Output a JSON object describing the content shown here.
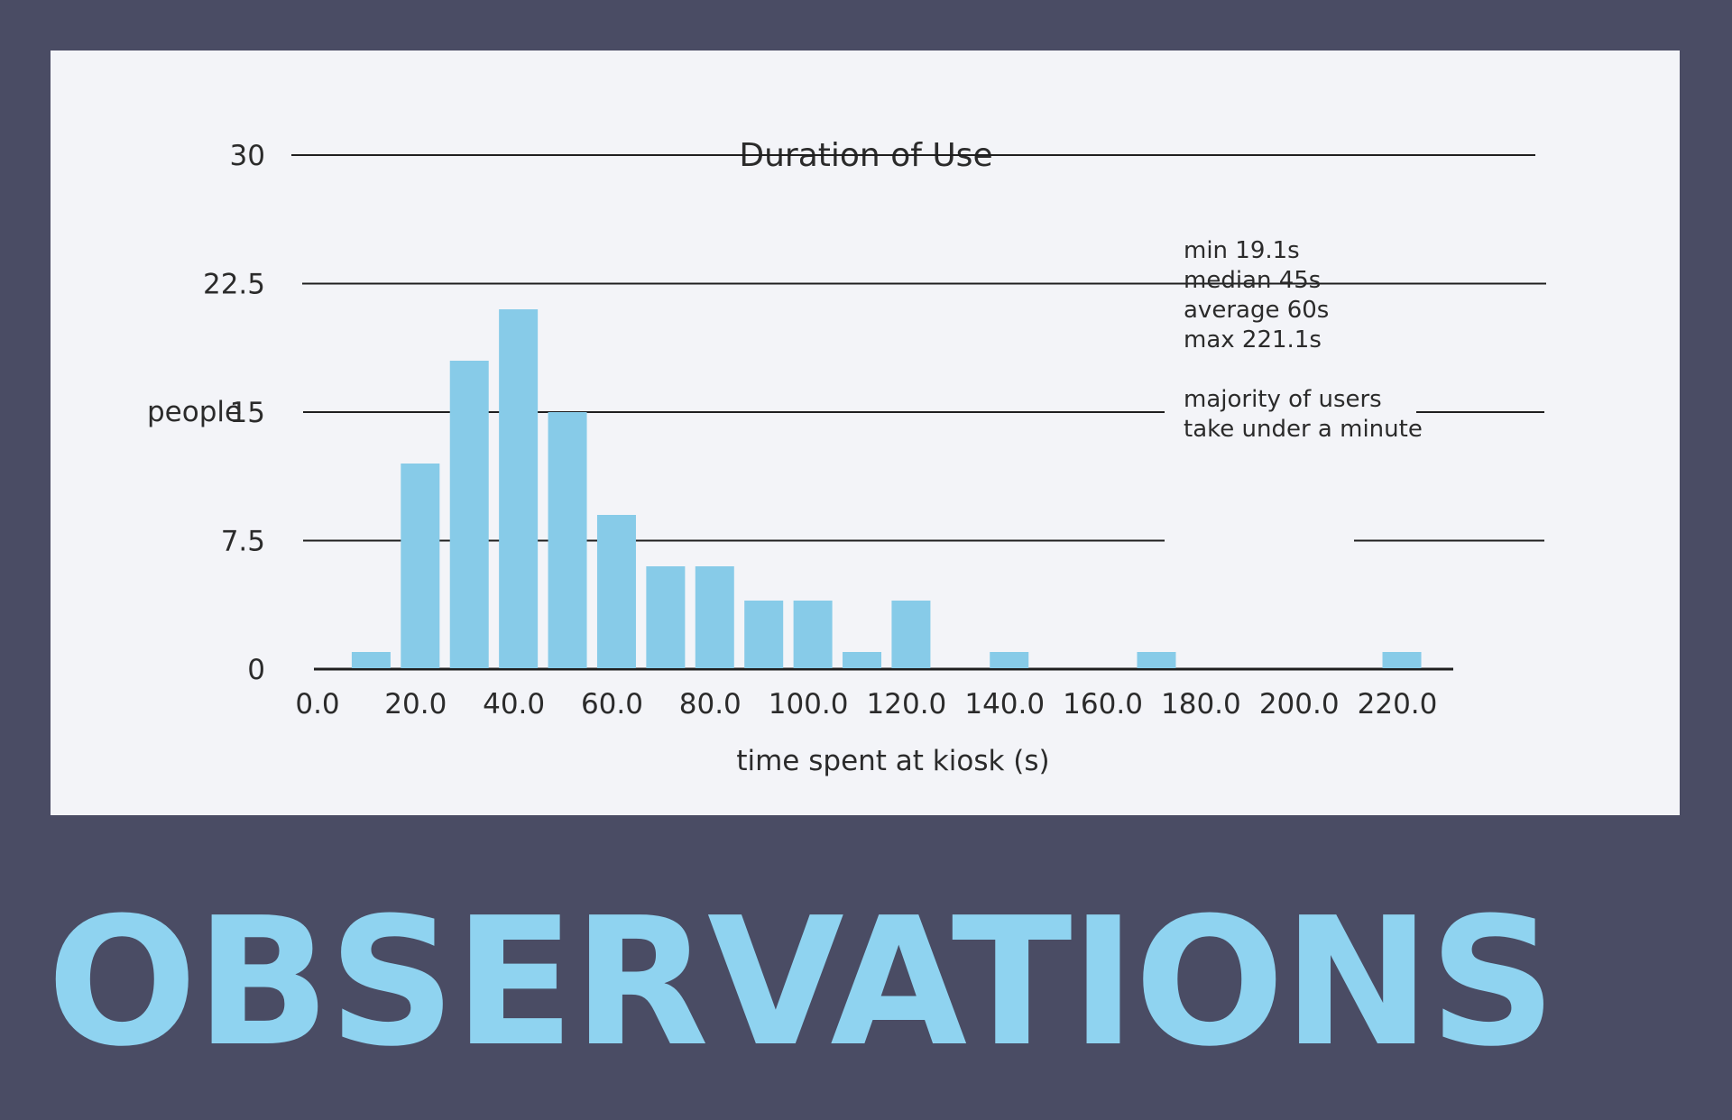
{
  "heading": "OBSERVATIONS",
  "colors": {
    "background": "#4a4c64",
    "panel": "#f3f4f8",
    "bar": "#87cbe8",
    "heading": "#8fd3f0",
    "gridline": "#1f1f1f"
  },
  "chart_data": {
    "type": "bar",
    "title": "Duration of Use",
    "xlabel": "time spent at kiosk (s)",
    "ylabel": "people",
    "ylim": [
      0,
      30
    ],
    "yticks": [
      "0",
      "7.5",
      "15",
      "22.5",
      "30"
    ],
    "grid": true,
    "xticks": [
      "0.0",
      "20.0",
      "40.0",
      "60.0",
      "80.0",
      "100.0",
      "120.0",
      "140.0",
      "160.0",
      "180.0",
      "200.0",
      "220.0"
    ],
    "xlim": [
      0,
      220
    ],
    "bin_width": 10,
    "bins": [
      {
        "x": 10,
        "value": 1
      },
      {
        "x": 20,
        "value": 12
      },
      {
        "x": 30,
        "value": 18
      },
      {
        "x": 40,
        "value": 21
      },
      {
        "x": 50,
        "value": 15
      },
      {
        "x": 60,
        "value": 9
      },
      {
        "x": 70,
        "value": 6
      },
      {
        "x": 80,
        "value": 6
      },
      {
        "x": 90,
        "value": 4
      },
      {
        "x": 100,
        "value": 4
      },
      {
        "x": 110,
        "value": 1
      },
      {
        "x": 120,
        "value": 4
      },
      {
        "x": 140,
        "value": 1
      },
      {
        "x": 170,
        "value": 1
      },
      {
        "x": 220,
        "value": 1
      }
    ],
    "annotations": {
      "stats": [
        "min 19.1s",
        "median 45s",
        "average 60s",
        "max 221.1s"
      ],
      "note": [
        "majority of users",
        "take under a minute"
      ]
    }
  }
}
